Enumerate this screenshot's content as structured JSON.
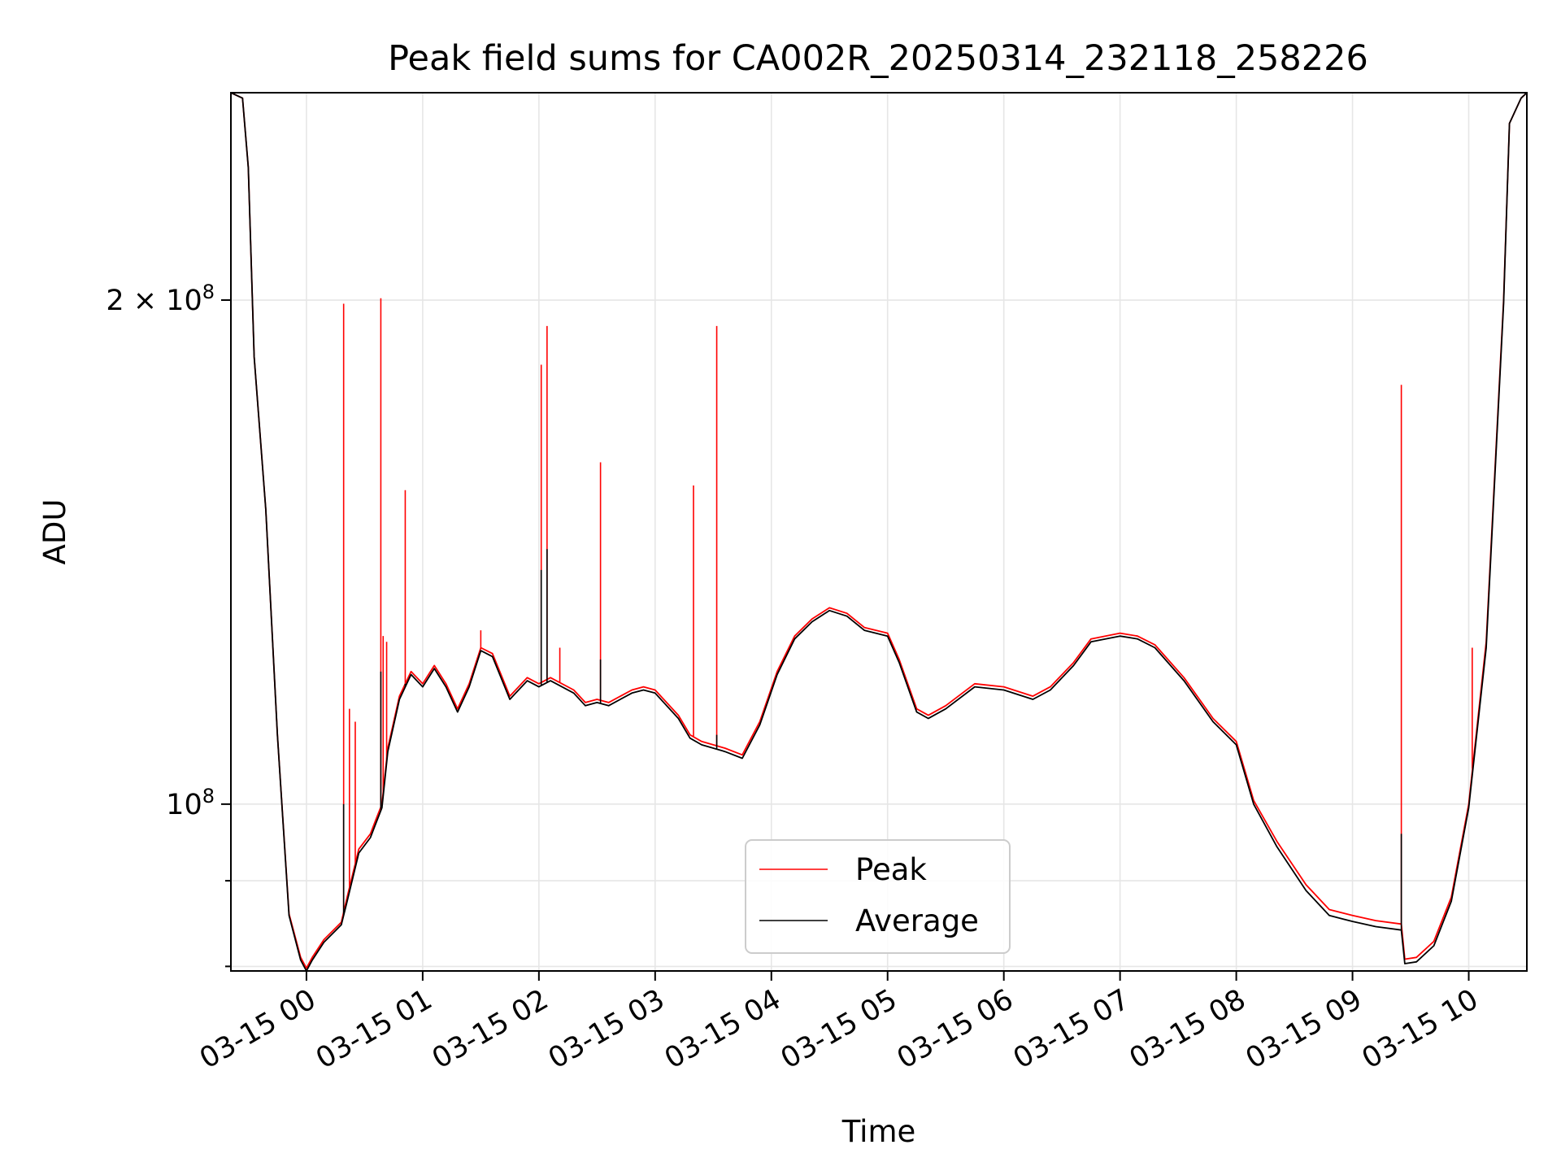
{
  "chart_data": {
    "type": "line",
    "title": "Peak field sums for CA002R_20250314_232118_258226",
    "xlabel": "Time",
    "ylabel": "ADU",
    "y_scale": "log",
    "ylim": [
      79500000,
      266000000
    ],
    "x_ticks": [
      {
        "hour": 0,
        "label": "03-15 00"
      },
      {
        "hour": 1,
        "label": "03-15 01"
      },
      {
        "hour": 2,
        "label": "03-15 02"
      },
      {
        "hour": 3,
        "label": "03-15 03"
      },
      {
        "hour": 4,
        "label": "03-15 04"
      },
      {
        "hour": 5,
        "label": "03-15 05"
      },
      {
        "hour": 6,
        "label": "03-15 06"
      },
      {
        "hour": 7,
        "label": "03-15 07"
      },
      {
        "hour": 8,
        "label": "03-15 08"
      },
      {
        "hour": 9,
        "label": "03-15 09"
      },
      {
        "hour": 10,
        "label": "03-15 10"
      }
    ],
    "y_ticks_major": [
      {
        "value": 100000000,
        "base": "10",
        "exp": "8"
      },
      {
        "value": 200000000,
        "base": "2 × 10",
        "exp": "8"
      }
    ],
    "y_ticks_minor": [
      80000000,
      90000000
    ],
    "xlim_hours": [
      -0.65,
      10.5
    ],
    "grid": true,
    "legend": {
      "placement": "lower center"
    },
    "series": [
      {
        "name": "Peak",
        "color": "#ff0000",
        "base": [
          [
            -0.65,
            266000000
          ],
          [
            -0.55,
            264000000
          ],
          [
            -0.5,
            240000000
          ],
          [
            -0.45,
            185000000
          ],
          [
            -0.35,
            150000000
          ],
          [
            -0.25,
            110000000
          ],
          [
            -0.15,
            86000000
          ],
          [
            -0.05,
            81000000
          ],
          [
            0.0,
            79800000
          ],
          [
            0.05,
            81000000
          ],
          [
            0.15,
            83000000
          ],
          [
            0.3,
            85000000
          ],
          [
            0.35,
            88000000
          ],
          [
            0.45,
            94000000
          ],
          [
            0.55,
            96000000
          ],
          [
            0.6,
            98000000
          ],
          [
            0.65,
            100000000
          ],
          [
            0.7,
            108000000
          ],
          [
            0.8,
            116000000
          ],
          [
            0.9,
            120000000
          ],
          [
            1.0,
            118000000
          ],
          [
            1.1,
            121000000
          ],
          [
            1.2,
            118000000
          ],
          [
            1.3,
            114000000
          ],
          [
            1.4,
            118000000
          ],
          [
            1.5,
            124000000
          ],
          [
            1.6,
            123000000
          ],
          [
            1.75,
            116000000
          ],
          [
            1.9,
            119000000
          ],
          [
            2.0,
            118000000
          ],
          [
            2.1,
            119000000
          ],
          [
            2.3,
            117000000
          ],
          [
            2.4,
            115000000
          ],
          [
            2.5,
            115500000
          ],
          [
            2.6,
            115000000
          ],
          [
            2.8,
            117000000
          ],
          [
            2.9,
            117500000
          ],
          [
            3.0,
            117000000
          ],
          [
            3.2,
            113000000
          ],
          [
            3.3,
            110000000
          ],
          [
            3.4,
            109000000
          ],
          [
            3.6,
            108000000
          ],
          [
            3.75,
            107000000
          ],
          [
            3.9,
            112000000
          ],
          [
            4.05,
            120000000
          ],
          [
            4.2,
            126000000
          ],
          [
            4.35,
            129000000
          ],
          [
            4.5,
            131000000
          ],
          [
            4.65,
            130000000
          ],
          [
            4.8,
            127500000
          ],
          [
            5.0,
            126500000
          ],
          [
            5.1,
            122000000
          ],
          [
            5.25,
            114000000
          ],
          [
            5.35,
            113000000
          ],
          [
            5.5,
            114500000
          ],
          [
            5.75,
            118000000
          ],
          [
            6.0,
            117500000
          ],
          [
            6.25,
            116000000
          ],
          [
            6.4,
            117500000
          ],
          [
            6.6,
            121500000
          ],
          [
            6.75,
            125500000
          ],
          [
            7.0,
            126500000
          ],
          [
            7.15,
            126000000
          ],
          [
            7.3,
            124500000
          ],
          [
            7.55,
            119000000
          ],
          [
            7.8,
            112500000
          ],
          [
            8.0,
            109000000
          ],
          [
            8.15,
            100500000
          ],
          [
            8.35,
            95000000
          ],
          [
            8.6,
            89500000
          ],
          [
            8.8,
            86500000
          ],
          [
            9.0,
            85800000
          ],
          [
            9.2,
            85200000
          ],
          [
            9.42,
            84800000
          ],
          [
            9.45,
            80800000
          ],
          [
            9.55,
            81000000
          ],
          [
            9.7,
            82800000
          ],
          [
            9.85,
            88000000
          ],
          [
            10.0,
            100000000
          ],
          [
            10.15,
            125000000
          ],
          [
            10.3,
            200000000
          ],
          [
            10.35,
            255000000
          ],
          [
            10.45,
            264000000
          ],
          [
            10.5,
            266000000
          ]
        ],
        "spikes": [
          [
            0.32,
            199000000
          ],
          [
            0.37,
            114000000
          ],
          [
            0.42,
            112000000
          ],
          [
            0.64,
            200500000
          ],
          [
            0.66,
            126000000
          ],
          [
            0.69,
            125000000
          ],
          [
            0.85,
            154000000
          ],
          [
            1.5,
            127000000
          ],
          [
            2.02,
            183000000
          ],
          [
            2.07,
            193000000
          ],
          [
            2.18,
            124000000
          ],
          [
            2.53,
            160000000
          ],
          [
            3.33,
            155000000
          ],
          [
            3.53,
            193000000
          ],
          [
            9.42,
            178000000
          ],
          [
            10.03,
            124000000
          ]
        ]
      },
      {
        "name": "Average",
        "color": "#000000",
        "base": [
          [
            -0.65,
            266000000
          ],
          [
            -0.55,
            264000000
          ],
          [
            -0.5,
            240000000
          ],
          [
            -0.45,
            185000000
          ],
          [
            -0.35,
            150000000
          ],
          [
            -0.25,
            110000000
          ],
          [
            -0.15,
            85800000
          ],
          [
            -0.05,
            80700000
          ],
          [
            0.0,
            79500000
          ],
          [
            0.05,
            80700000
          ],
          [
            0.15,
            82700000
          ],
          [
            0.3,
            84700000
          ],
          [
            0.35,
            87500000
          ],
          [
            0.45,
            93500000
          ],
          [
            0.55,
            95500000
          ],
          [
            0.6,
            97500000
          ],
          [
            0.65,
            99500000
          ],
          [
            0.7,
            107500000
          ],
          [
            0.8,
            115500000
          ],
          [
            0.9,
            119500000
          ],
          [
            1.0,
            117500000
          ],
          [
            1.1,
            120500000
          ],
          [
            1.2,
            117500000
          ],
          [
            1.3,
            113500000
          ],
          [
            1.4,
            117500000
          ],
          [
            1.5,
            123500000
          ],
          [
            1.6,
            122500000
          ],
          [
            1.75,
            115500000
          ],
          [
            1.9,
            118500000
          ],
          [
            2.0,
            117500000
          ],
          [
            2.1,
            118500000
          ],
          [
            2.3,
            116500000
          ],
          [
            2.4,
            114500000
          ],
          [
            2.5,
            115000000
          ],
          [
            2.6,
            114500000
          ],
          [
            2.8,
            116500000
          ],
          [
            2.9,
            117000000
          ],
          [
            3.0,
            116500000
          ],
          [
            3.2,
            112500000
          ],
          [
            3.3,
            109500000
          ],
          [
            3.4,
            108500000
          ],
          [
            3.6,
            107500000
          ],
          [
            3.75,
            106500000
          ],
          [
            3.9,
            111500000
          ],
          [
            4.05,
            119500000
          ],
          [
            4.2,
            125500000
          ],
          [
            4.35,
            128500000
          ],
          [
            4.5,
            130500000
          ],
          [
            4.65,
            129500000
          ],
          [
            4.8,
            127000000
          ],
          [
            5.0,
            126000000
          ],
          [
            5.1,
            121500000
          ],
          [
            5.25,
            113500000
          ],
          [
            5.35,
            112500000
          ],
          [
            5.5,
            114000000
          ],
          [
            5.75,
            117500000
          ],
          [
            6.0,
            117000000
          ],
          [
            6.25,
            115500000
          ],
          [
            6.4,
            117000000
          ],
          [
            6.6,
            121000000
          ],
          [
            6.75,
            125000000
          ],
          [
            7.0,
            126000000
          ],
          [
            7.15,
            125500000
          ],
          [
            7.3,
            124000000
          ],
          [
            7.55,
            118500000
          ],
          [
            7.8,
            112000000
          ],
          [
            8.0,
            108500000
          ],
          [
            8.15,
            100000000
          ],
          [
            8.35,
            94300000
          ],
          [
            8.6,
            88800000
          ],
          [
            8.8,
            85800000
          ],
          [
            9.0,
            85100000
          ],
          [
            9.2,
            84500000
          ],
          [
            9.42,
            84100000
          ],
          [
            9.45,
            80300000
          ],
          [
            9.55,
            80500000
          ],
          [
            9.7,
            82300000
          ],
          [
            9.85,
            87500000
          ],
          [
            10.0,
            99500000
          ],
          [
            10.15,
            124000000
          ],
          [
            10.3,
            199000000
          ],
          [
            10.35,
            255000000
          ],
          [
            10.45,
            264000000
          ],
          [
            10.5,
            266000000
          ]
        ],
        "spikes": [
          [
            0.32,
            100000000
          ],
          [
            0.64,
            120000000
          ],
          [
            0.85,
            118000000
          ],
          [
            2.02,
            138000000
          ],
          [
            2.07,
            142000000
          ],
          [
            2.53,
            122000000
          ],
          [
            3.53,
            110000000
          ],
          [
            9.42,
            96000000
          ]
        ]
      }
    ]
  }
}
